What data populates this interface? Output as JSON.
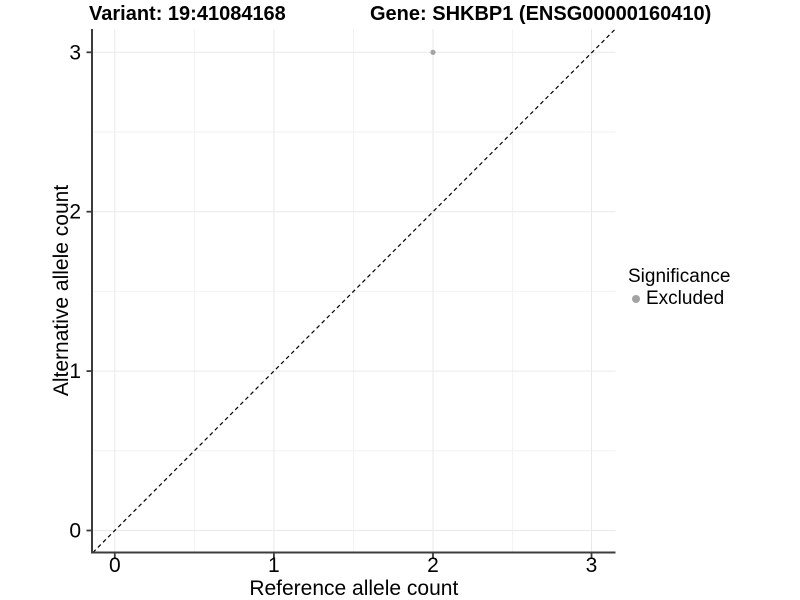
{
  "chart_data": {
    "type": "scatter",
    "variant_title": "Variant: 19:41084168",
    "gene_title": "Gene: SHKBP1 (ENSG00000160410)",
    "xlabel": "Reference allele count",
    "ylabel": "Alternative allele count",
    "xlim": [
      -0.15,
      3.15
    ],
    "ylim": [
      -0.15,
      3.15
    ],
    "x_ticks": [
      "0",
      "1",
      "2",
      "3"
    ],
    "y_ticks": [
      "0",
      "1",
      "2",
      "3"
    ],
    "grid": true,
    "points": [
      {
        "x": 2,
        "y": 3,
        "series": "Excluded",
        "color": "#a3a3a3"
      }
    ],
    "reference_line": {
      "kind": "abline",
      "slope": 1,
      "intercept": 0,
      "style": "dashed",
      "color": "#000000"
    },
    "legend": {
      "title": "Significance",
      "position": "right",
      "items": [
        {
          "label": "Excluded",
          "color": "#a3a3a3",
          "marker": "circle"
        }
      ]
    }
  }
}
